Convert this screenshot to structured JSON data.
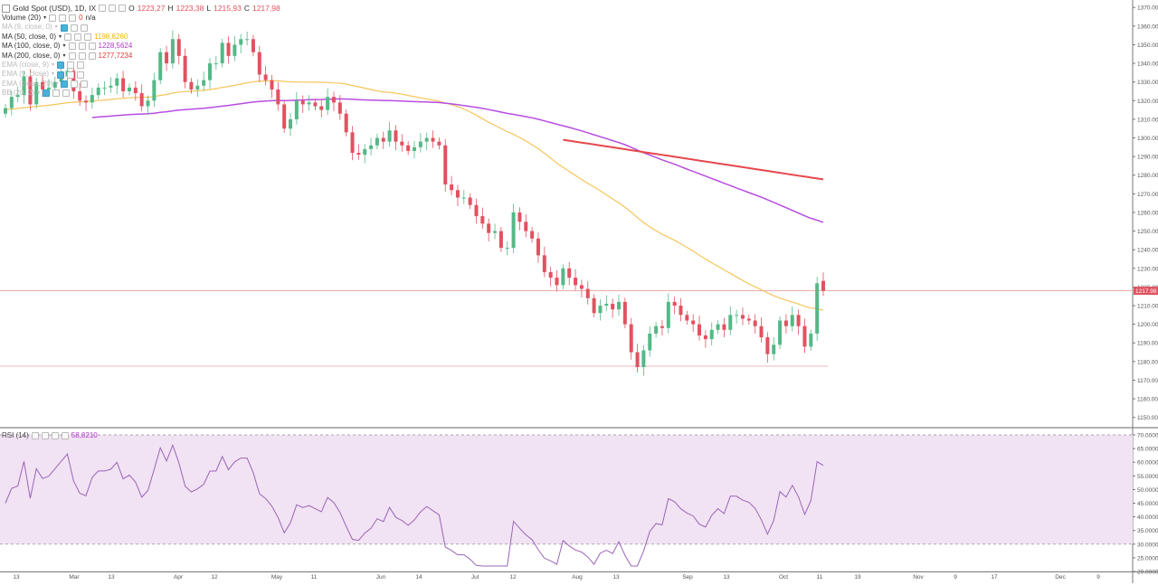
{
  "header": {
    "symbol": "Gold Spot (USD), 1D, IX",
    "o_label": "O",
    "o_value": "1223,27",
    "h_label": "H",
    "h_value": "1223,38",
    "l_label": "L",
    "l_value": "1215,93",
    "c_label": "C",
    "c_value": "1217,98"
  },
  "indicators": [
    {
      "name": "Volume (20)",
      "value": "0",
      "value2": "n/a",
      "color": "#e53935",
      "faded": false,
      "active": false
    },
    {
      "name": "MA (9, close, 0)",
      "value": "",
      "color": "#999999",
      "faded": true,
      "active": true
    },
    {
      "name": "MA (50, close, 0)",
      "value": "1198,6260",
      "color": "#f0b400",
      "faded": false,
      "active": false
    },
    {
      "name": "MA (100, close, 0)",
      "value": "1228,5624",
      "color": "#b037c9",
      "faded": false,
      "active": false
    },
    {
      "name": "MA (200, close, 0)",
      "value": "1277,7234",
      "color": "#e53935",
      "faded": false,
      "active": false
    },
    {
      "name": "EMA (close, 9)",
      "value": "",
      "color": "#999999",
      "faded": true,
      "active": true
    },
    {
      "name": "EMA (9, close)",
      "value": "",
      "color": "#999999",
      "faded": true,
      "active": true
    },
    {
      "name": "EMA (close, 20)",
      "value": "",
      "color": "#999999",
      "faded": true,
      "active": true
    },
    {
      "name": "BB (20, 2)",
      "value": "",
      "color": "#999999",
      "faded": true,
      "active": true
    }
  ],
  "rsi": {
    "label": "RSI (14)",
    "value": "58,8210",
    "value_color": "#b037c9"
  },
  "colors": {
    "up": "#53b987",
    "down": "#e05260",
    "ma50": "#f5c55a",
    "ma100": "#b74de0",
    "ma200": "#e5484d",
    "rsi_line": "#9a64b8",
    "rsi_band": "#f1e3f3",
    "price_line": "#e8a0a0",
    "current_price_bg": "#e05260"
  },
  "chart_data": {
    "type": "candlestick",
    "price_axis": {
      "ticks": [
        "1370.00",
        "1360.00",
        "1350.00",
        "1340.00",
        "1330.00",
        "1320.00",
        "1310.00",
        "1300.00",
        "1290.00",
        "1280.00",
        "1270.00",
        "1260.00",
        "1250.00",
        "1240.00",
        "1230.00",
        "1220.00",
        "1210.00",
        "1200.00",
        "1190.00",
        "1180.00",
        "1170.00",
        "1160.00",
        "1150.00"
      ],
      "ylim": [
        1145,
        1374
      ]
    },
    "current_price": "1217.98",
    "support_level": 1177.5,
    "ma50_end": 1198.626,
    "ma100_end": 1228.5624,
    "ma200_end": 1277.7234,
    "rsi_axis": {
      "ticks": [
        "70.0000",
        "65.0000",
        "60.0000",
        "55.0000",
        "50.0000",
        "45.0000",
        "40.0000",
        "35.0000",
        "30.0000",
        "25.0000",
        "20.0000"
      ],
      "overbought": 70,
      "oversold": 30,
      "ylim": [
        20,
        70
      ]
    },
    "time_axis": [
      "13",
      "Mar",
      "13",
      "Apr",
      "12",
      "May",
      "11",
      "Jun",
      "14",
      "Jul",
      "12",
      "Aug",
      "13",
      "Sep",
      "13",
      "Oct",
      "11",
      "19",
      "Nov",
      "9",
      "17",
      "Dec",
      "9"
    ],
    "closes": [
      1316,
      1322,
      1323,
      1333,
      1318,
      1330,
      1326,
      1327,
      1330,
      1333,
      1336,
      1325,
      1320,
      1319,
      1323,
      1327,
      1327,
      1328,
      1332,
      1325,
      1327,
      1324,
      1317,
      1320,
      1331,
      1346,
      1340,
      1353,
      1344,
      1330,
      1326,
      1328,
      1331,
      1340,
      1340,
      1351,
      1344,
      1350,
      1353,
      1353,
      1346,
      1334,
      1331,
      1326,
      1318,
      1305,
      1310,
      1320,
      1318,
      1319,
      1317,
      1315,
      1322,
      1319,
      1313,
      1303,
      1292,
      1291,
      1294,
      1296,
      1300,
      1298,
      1304,
      1298,
      1296,
      1293,
      1295,
      1298,
      1300,
      1298,
      1296,
      1275,
      1272,
      1268,
      1268,
      1264,
      1258,
      1254,
      1249,
      1250,
      1241,
      1241,
      1260,
      1255,
      1250,
      1246,
      1237,
      1228,
      1225,
      1221,
      1230,
      1225,
      1221,
      1219,
      1214,
      1206,
      1210,
      1211,
      1208,
      1212,
      1200,
      1185,
      1177,
      1186,
      1195,
      1199,
      1198,
      1212,
      1210,
      1205,
      1202,
      1200,
      1194,
      1192,
      1197,
      1200,
      1197,
      1205,
      1205,
      1203,
      1202,
      1199,
      1193,
      1184,
      1189,
      1202,
      1199,
      1205,
      1199,
      1188,
      1195,
      1222,
      1217.98
    ]
  }
}
